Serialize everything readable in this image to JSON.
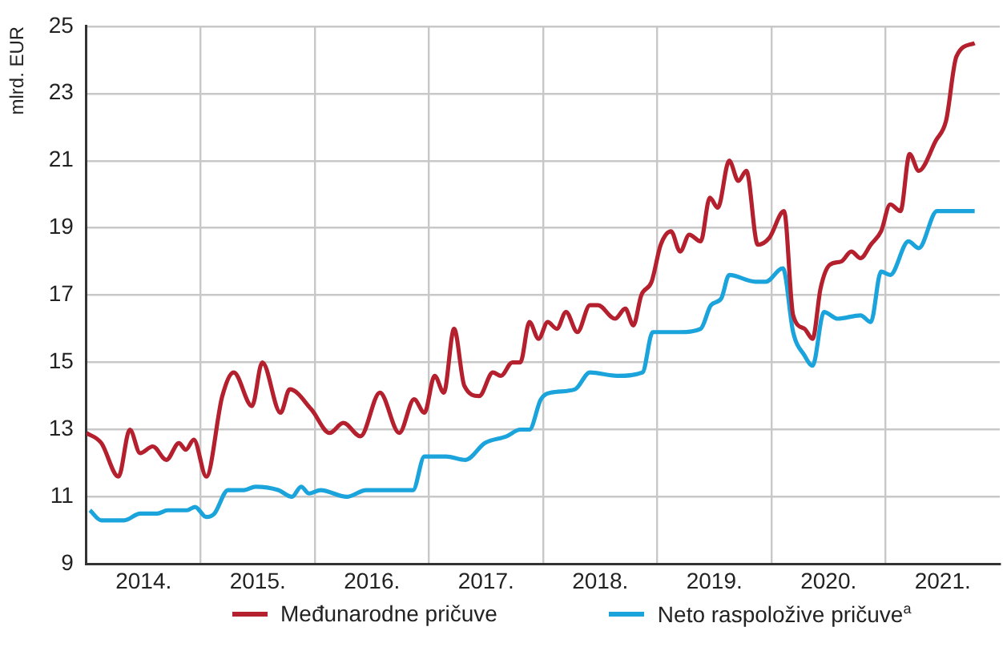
{
  "chart_data": {
    "type": "line",
    "ylabel": "mlrd. EUR",
    "xlim": [
      2014,
      2022
    ],
    "ylim": [
      9,
      25
    ],
    "yticks": [
      9,
      11,
      13,
      15,
      17,
      19,
      21,
      23,
      25
    ],
    "xticks": [
      {
        "value": 2014.5,
        "label": "2014."
      },
      {
        "value": 2015,
        "label": null
      },
      {
        "value": 2015.5,
        "label": "2015."
      },
      {
        "value": 2016,
        "label": null
      },
      {
        "value": 2016.5,
        "label": "2016."
      },
      {
        "value": 2017,
        "label": null
      },
      {
        "value": 2017.5,
        "label": "2017."
      },
      {
        "value": 2018,
        "label": null
      },
      {
        "value": 2018.5,
        "label": "2018."
      },
      {
        "value": 2019,
        "label": null
      },
      {
        "value": 2019.5,
        "label": "2019."
      },
      {
        "value": 2020,
        "label": null
      },
      {
        "value": 2020.5,
        "label": "2020."
      },
      {
        "value": 2021,
        "label": null
      },
      {
        "value": 2021.5,
        "label": "2021."
      }
    ],
    "grid": true,
    "legend": "bottom",
    "marker": "none",
    "line_style": "solid",
    "series": [
      {
        "name": "Međunarodne pričuve",
        "color": "#b5202e",
        "x": [
          2014.0,
          2014.13,
          2014.28,
          2014.38,
          2014.47,
          2014.58,
          2014.7,
          2014.81,
          2014.87,
          2014.94,
          2015.05,
          2015.19,
          2015.29,
          2015.45,
          2015.54,
          2015.7,
          2015.78,
          2015.97,
          2016.13,
          2016.25,
          2016.4,
          2016.57,
          2016.74,
          2016.87,
          2016.96,
          2017.05,
          2017.13,
          2017.22,
          2017.31,
          2017.44,
          2017.56,
          2017.63,
          2017.73,
          2017.8,
          2017.88,
          2017.96,
          2018.04,
          2018.12,
          2018.2,
          2018.3,
          2018.41,
          2018.48,
          2018.63,
          2018.72,
          2018.79,
          2018.86,
          2018.95,
          2019.03,
          2019.12,
          2019.2,
          2019.28,
          2019.38,
          2019.46,
          2019.53,
          2019.63,
          2019.71,
          2019.78,
          2019.88,
          2019.98,
          2020.11,
          2020.19,
          2020.29,
          2020.36,
          2020.43,
          2020.51,
          2020.61,
          2020.7,
          2020.78,
          2020.87,
          2020.96,
          2021.04,
          2021.13,
          2021.21,
          2021.29,
          2021.44,
          2021.53,
          2021.62,
          2021.78
        ],
        "values": [
          12.9,
          12.6,
          11.6,
          13.0,
          12.3,
          12.5,
          12.1,
          12.6,
          12.4,
          12.7,
          11.6,
          14.0,
          14.7,
          13.7,
          15.0,
          13.5,
          14.2,
          13.6,
          12.9,
          13.2,
          12.8,
          14.1,
          12.9,
          13.9,
          13.5,
          14.6,
          14.1,
          16.0,
          14.3,
          14.0,
          14.7,
          14.6,
          15.0,
          15.0,
          16.2,
          15.7,
          16.2,
          16.0,
          16.5,
          15.9,
          16.7,
          16.7,
          16.3,
          16.6,
          16.1,
          17.0,
          17.4,
          18.5,
          18.9,
          18.3,
          18.8,
          18.6,
          19.9,
          19.6,
          21.0,
          20.4,
          20.7,
          18.5,
          18.7,
          19.5,
          16.4,
          16.0,
          15.7,
          17.2,
          17.9,
          18.0,
          18.3,
          18.1,
          18.5,
          18.9,
          19.7,
          19.5,
          21.2,
          20.7,
          21.6,
          22.2,
          24.1,
          24.5
        ]
      },
      {
        "name": "Neto raspoložive pričuve$^{a}$",
        "color": "#1ba3dc",
        "x": [
          2014.03,
          2014.13,
          2014.33,
          2014.47,
          2014.62,
          2014.71,
          2014.88,
          2014.95,
          2015.05,
          2015.12,
          2015.24,
          2015.38,
          2015.48,
          2015.68,
          2015.8,
          2015.88,
          2015.95,
          2016.05,
          2016.28,
          2016.45,
          2016.62,
          2016.77,
          2016.86,
          2016.96,
          2017.05,
          2017.15,
          2017.32,
          2017.49,
          2017.68,
          2017.8,
          2017.88,
          2017.98,
          2018.07,
          2018.28,
          2018.41,
          2018.65,
          2018.87,
          2018.96,
          2019.13,
          2019.2,
          2019.38,
          2019.47,
          2019.56,
          2019.63,
          2019.86,
          2019.95,
          2020.1,
          2020.19,
          2020.29,
          2020.36,
          2020.46,
          2020.58,
          2020.78,
          2020.87,
          2020.96,
          2021.04,
          2021.2,
          2021.29,
          2021.45,
          2021.59,
          2021.78
        ],
        "values": [
          10.6,
          10.3,
          10.3,
          10.5,
          10.5,
          10.6,
          10.6,
          10.7,
          10.4,
          10.5,
          11.2,
          11.2,
          11.3,
          11.2,
          11.0,
          11.3,
          11.1,
          11.2,
          11.0,
          11.2,
          11.2,
          11.2,
          11.2,
          12.2,
          12.2,
          12.2,
          12.1,
          12.6,
          12.8,
          13.0,
          13.0,
          13.9,
          14.1,
          14.2,
          14.7,
          14.6,
          14.7,
          15.9,
          15.9,
          15.9,
          16.0,
          16.7,
          16.9,
          17.6,
          17.4,
          17.4,
          17.8,
          15.9,
          15.2,
          14.9,
          16.5,
          16.3,
          16.4,
          16.2,
          17.7,
          17.6,
          18.6,
          18.4,
          19.5,
          19.5,
          19.5
        ]
      }
    ]
  }
}
